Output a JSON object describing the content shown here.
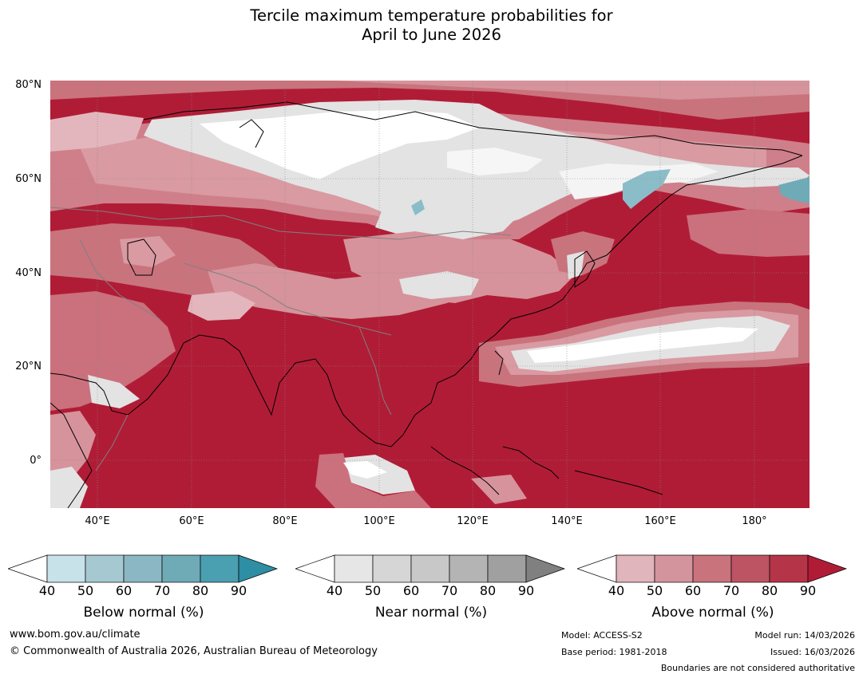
{
  "title": {
    "line1": "Tercile maximum temperature probabilities for",
    "line2": "April to June 2026"
  },
  "map": {
    "latitude_labels": [
      "80°N",
      "60°N",
      "40°N",
      "20°N",
      "0°"
    ],
    "longitude_labels": [
      "40°E",
      "60°E",
      "80°E",
      "100°E",
      "120°E",
      "140°E",
      "160°E",
      "180°"
    ],
    "extent": {
      "lon_min": 30,
      "lon_max": 191,
      "lat_min": -10,
      "lat_max": 81
    }
  },
  "legends": [
    {
      "name": "Below normal (%)",
      "ticks": [
        "40",
        "50",
        "60",
        "70",
        "80",
        "90"
      ],
      "colors": [
        "#ffffff",
        "#c8e2ea",
        "#a6c9d1",
        "#8ab7c3",
        "#6faab7",
        "#4a9fb0",
        "#2e8ea3"
      ]
    },
    {
      "name": "Near normal (%)",
      "ticks": [
        "40",
        "50",
        "60",
        "70",
        "80",
        "90"
      ],
      "colors": [
        "#ffffff",
        "#e6e6e6",
        "#d6d6d6",
        "#c8c8c8",
        "#b4b4b4",
        "#a0a0a0",
        "#808080"
      ]
    },
    {
      "name": "Above normal (%)",
      "ticks": [
        "40",
        "50",
        "60",
        "70",
        "80",
        "90"
      ],
      "colors": [
        "#ffffff",
        "#e0b5bb",
        "#d4949d",
        "#c9737d",
        "#bd5463",
        "#b63447",
        "#b01c36"
      ]
    }
  ],
  "footer": {
    "website": "www.bom.gov.au/climate",
    "copyright": "© Commonwealth of Australia 2026, Australian Bureau of Meteorology",
    "model": "Model: ACCESS-S2",
    "base_period": "Base period: 1981-2018",
    "model_run": "Model run: 14/03/2026",
    "issued": "Issued: 16/03/2026",
    "boundaries": "Boundaries are not considered authoritative"
  },
  "colors": {
    "above_90": "#b01c36",
    "above_80": "#b63447",
    "above_70": "#c05063",
    "above_60": "#cb707d",
    "above_50": "#d6939c",
    "above_40": "#e2b6bc",
    "near_normal": "#e3e3e3",
    "below_normal": "#8bbdc8"
  }
}
